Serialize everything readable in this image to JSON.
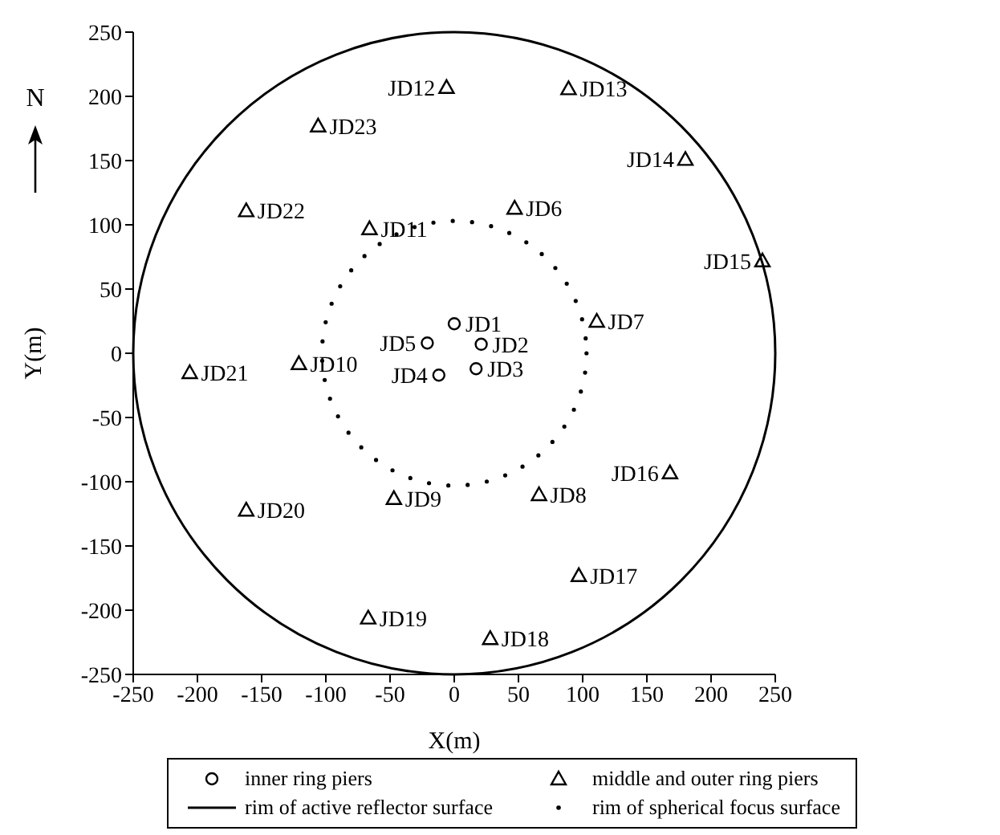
{
  "chart_data": {
    "type": "scatter",
    "xlabel": "X(m)",
    "ylabel": "Y(m)",
    "xlim": [
      -250,
      250
    ],
    "ylim": [
      -250,
      250
    ],
    "xticks": [
      -250,
      -200,
      -150,
      -100,
      -50,
      0,
      50,
      100,
      150,
      200,
      250
    ],
    "yticks": [
      -250,
      -200,
      -150,
      -100,
      -50,
      0,
      50,
      100,
      150,
      200,
      250
    ],
    "grid": false,
    "legend": "bottom",
    "series": [
      {
        "name": "inner ring piers",
        "marker": "circle",
        "color": "#000000",
        "x": [
          0,
          21,
          17,
          -12,
          -21
        ],
        "values": [
          23,
          7,
          -12,
          -17,
          8
        ]
      },
      {
        "name": "middle and outer ring piers",
        "marker": "triangle",
        "color": "#000000",
        "x": [
          47,
          111,
          66,
          -47,
          -121,
          -66,
          -6,
          89,
          180,
          240,
          168,
          97,
          28,
          -67,
          -162,
          -206,
          -162,
          -106
        ],
        "values": [
          113,
          25,
          -110,
          -113,
          -8,
          97,
          207,
          206,
          151,
          72,
          -93,
          -173,
          -222,
          -206,
          -122,
          -15,
          111,
          177
        ]
      }
    ],
    "annotations": [
      "N",
      "rim of active reflector surface",
      "rim of spherical focus surface",
      {
        "text": "JD1",
        "x": 0,
        "y": 23
      },
      {
        "text": "JD2",
        "x": 21,
        "y": 7
      },
      {
        "text": "JD3",
        "x": 17,
        "y": -12
      },
      {
        "text": "JD4",
        "x": -12,
        "y": -17
      },
      {
        "text": "JD5",
        "x": -21,
        "y": 8
      },
      {
        "text": "JD6",
        "x": 47,
        "y": 113
      },
      {
        "text": "JD7",
        "x": 111,
        "y": 25
      },
      {
        "text": "JD8",
        "x": 66,
        "y": -110
      },
      {
        "text": "JD9",
        "x": -47,
        "y": -113
      },
      {
        "text": "JD10",
        "x": -121,
        "y": -8
      },
      {
        "text": "JD11",
        "x": -66,
        "y": 97
      },
      {
        "text": "JD12",
        "x": -6,
        "y": 207
      },
      {
        "text": "JD13",
        "x": 89,
        "y": 206
      },
      {
        "text": "JD14",
        "x": 180,
        "y": 151
      },
      {
        "text": "JD15",
        "x": 240,
        "y": 72
      },
      {
        "text": "JD16",
        "x": 168,
        "y": -93
      },
      {
        "text": "JD17",
        "x": 97,
        "y": -173
      },
      {
        "text": "JD18",
        "x": 28,
        "y": -222
      },
      {
        "text": "JD19",
        "x": -67,
        "y": -206
      },
      {
        "text": "JD20",
        "x": -162,
        "y": -122
      },
      {
        "text": "JD21",
        "x": -206,
        "y": -15
      },
      {
        "text": "JD22",
        "x": -162,
        "y": 111
      },
      {
        "text": "JD23",
        "x": -106,
        "y": 177
      }
    ]
  }
}
